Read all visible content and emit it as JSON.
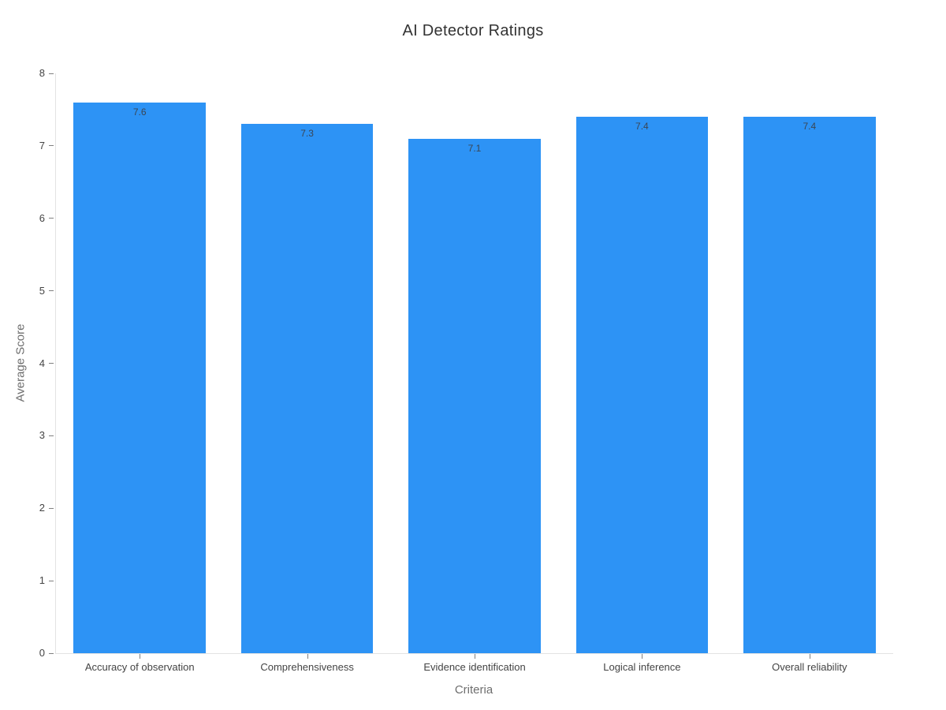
{
  "chart_data": {
    "type": "bar",
    "title": "AI Detector Ratings",
    "xlabel": "Criteria",
    "ylabel": "Average Score",
    "categories": [
      "Accuracy of observation",
      "Comprehensiveness",
      "Evidence identification",
      "Logical inference",
      "Overall reliability"
    ],
    "values": [
      7.6,
      7.3,
      7.1,
      7.4,
      7.4
    ],
    "value_labels": [
      "7.6",
      "7.3",
      "7.1",
      "7.4",
      "7.4"
    ],
    "ytick_labels": [
      "0",
      "1",
      "2",
      "3",
      "4",
      "5",
      "6",
      "7",
      "8"
    ],
    "ylim": [
      0,
      8
    ],
    "ytick_step": 1,
    "grid": false,
    "legend_position": "none",
    "bar_color": "#2d93f5",
    "value_label_color": "#3b4654",
    "tick_label_color": "#444444",
    "axis_title_color": "#6e6e6e",
    "axis_line_color": "#e3e3e3",
    "title_color": "#333333",
    "background_color": "#ffffff"
  }
}
